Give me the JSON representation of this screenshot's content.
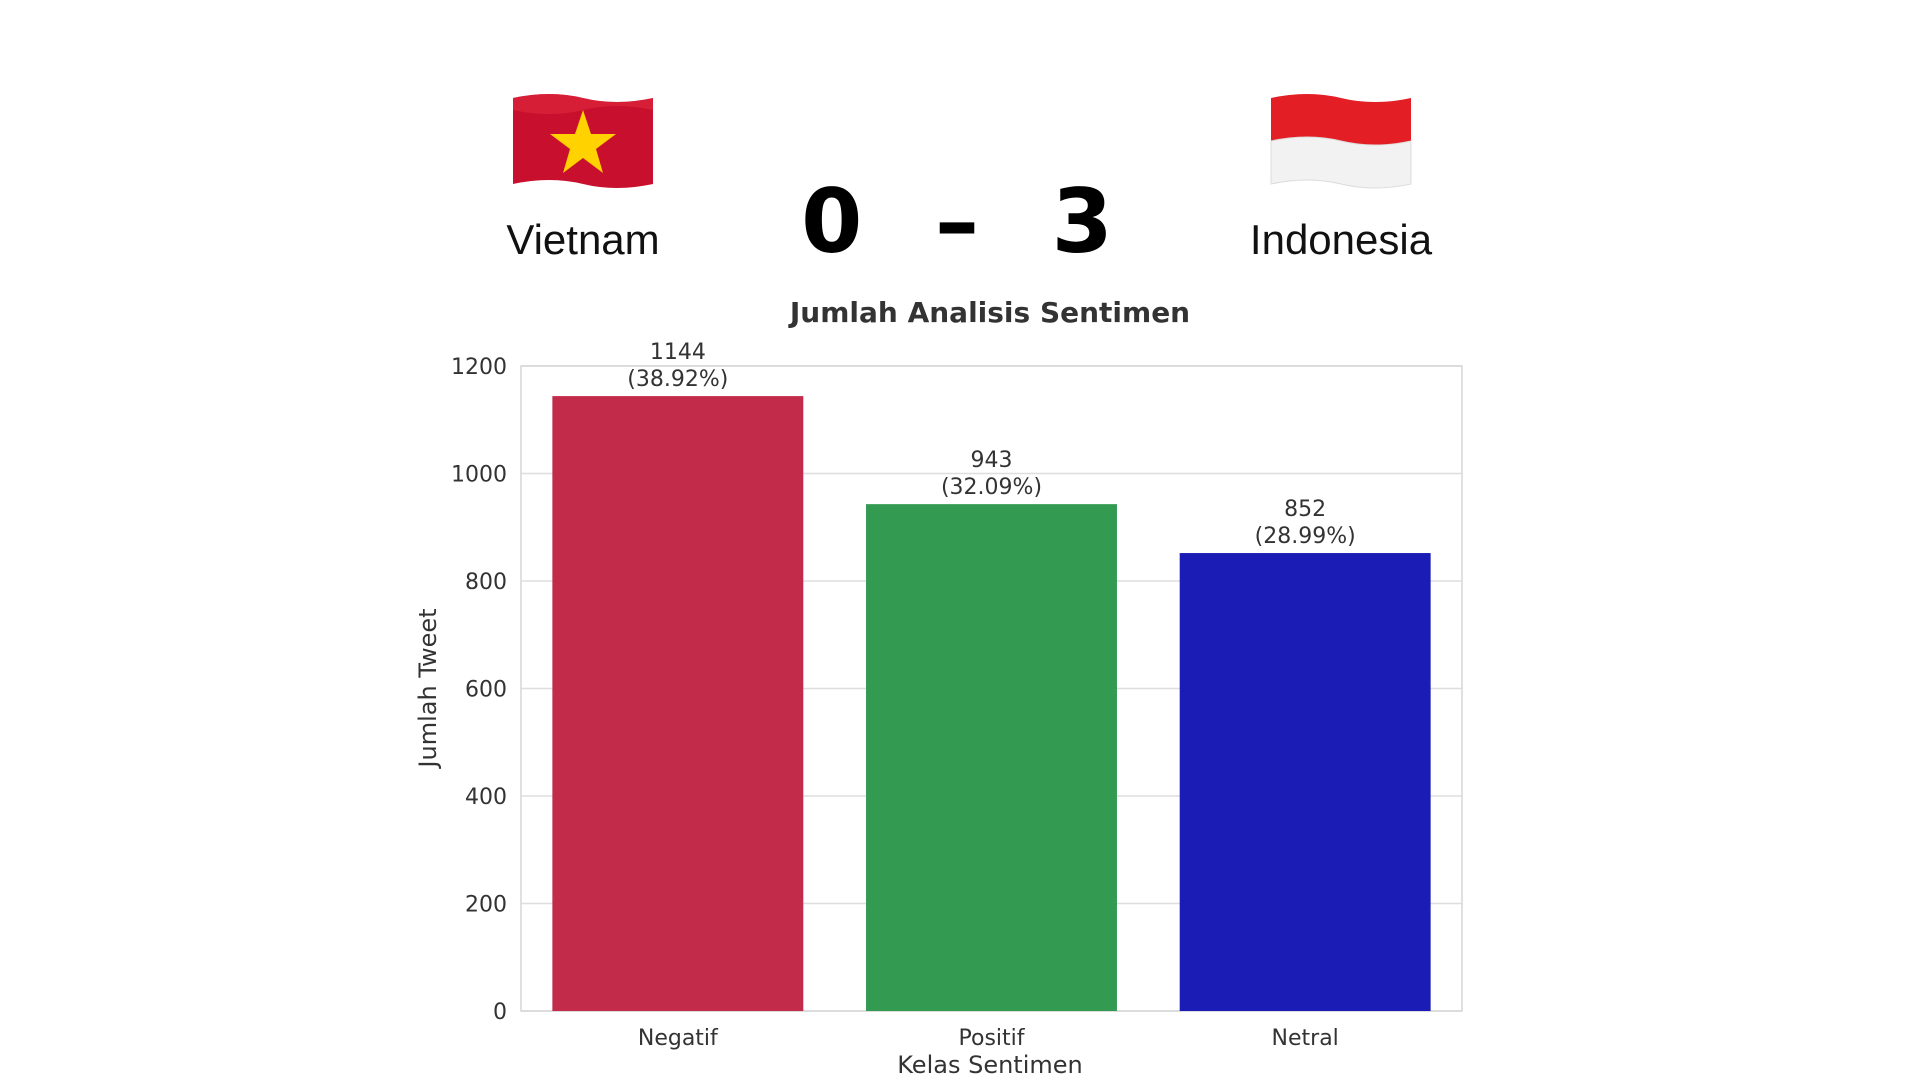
{
  "match": {
    "team_left": "Vietnam",
    "team_right": "Indonesia",
    "score_left": "0",
    "score_separator": "–",
    "score_right": "3",
    "flag_left_icon": "vietnam-flag-icon",
    "flag_right_icon": "indonesia-flag-icon"
  },
  "chart_data": {
    "type": "bar",
    "title": "Jumlah Analisis Sentimen",
    "xlabel": "Kelas Sentimen",
    "ylabel": "Jumlah Tweet",
    "categories": [
      "Negatif",
      "Positif",
      "Netral"
    ],
    "values": [
      1144,
      943,
      852
    ],
    "value_labels": [
      "1144\n(38.92%)",
      "943\n(32.09%)",
      "852\n(28.99%)"
    ],
    "colors": [
      "#c22b49",
      "#339a52",
      "#1b1bb5"
    ],
    "ylim": [
      0,
      1200
    ],
    "yticks": [
      0,
      200,
      400,
      600,
      800,
      1000,
      1200
    ],
    "grid": true
  }
}
